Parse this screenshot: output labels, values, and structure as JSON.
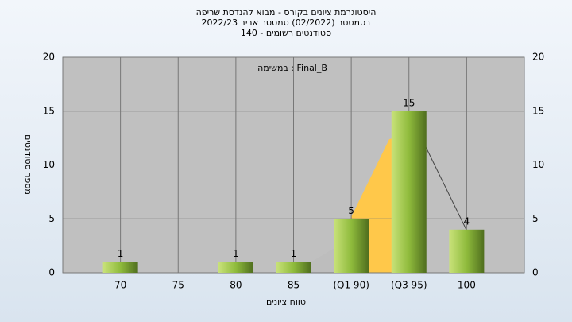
{
  "chart_data": {
    "type": "bar",
    "title": "היסטוגרמת ציונים בקורס - מבוא להנדסת שריפה",
    "subtitle": [
      "בסמסטר  (02/2022)  סמסטר אביב 2022/23",
      "סטודנטים רשומים - 140"
    ],
    "annotation": "במשימה : Final_B",
    "ylabel": "מספר סטודנטים",
    "xlabel": "טווח ציונים",
    "categories": [
      "70",
      "75",
      "80",
      "85",
      "(Q1 90)",
      "(Q3 95)",
      "100"
    ],
    "values": [
      1,
      0,
      1,
      1,
      5,
      15,
      4
    ],
    "color": "#9cc444",
    "ylim": [
      0,
      20
    ],
    "yticks": [
      0,
      5,
      10,
      15,
      20
    ],
    "grid": true
  }
}
